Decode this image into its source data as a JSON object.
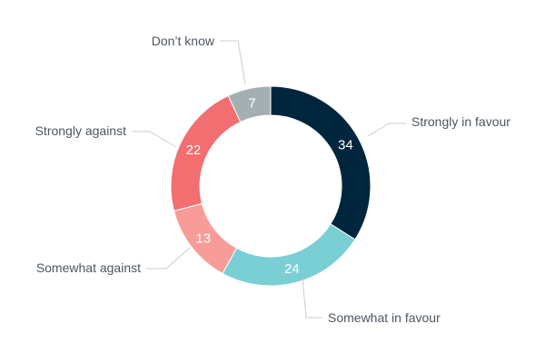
{
  "chart_data": {
    "type": "pie",
    "variant": "donut",
    "title": "",
    "categories": [
      "Strongly in favour",
      "Somewhat in favour",
      "Somewhat against",
      "Strongly against",
      "Don’t know"
    ],
    "values": [
      34,
      24,
      13,
      22,
      7
    ],
    "colors": [
      "#00263e",
      "#7acfd4",
      "#f79c98",
      "#f26e71",
      "#a4afb4"
    ],
    "data_labels": [
      "34",
      "24",
      "13",
      "22",
      "7"
    ],
    "start_position": "12 o'clock",
    "direction": "clockwise",
    "legend": "none"
  }
}
